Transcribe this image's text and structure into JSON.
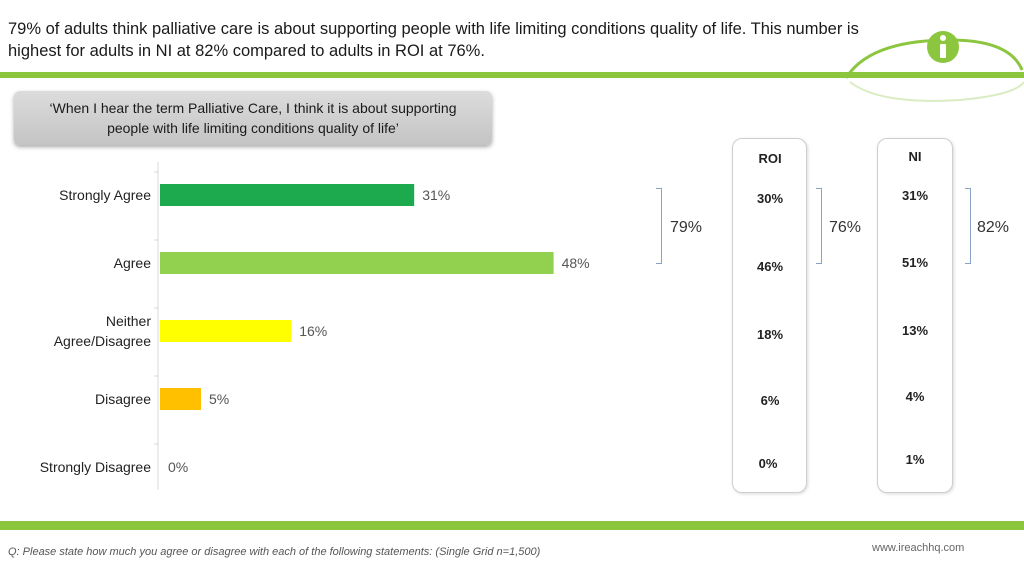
{
  "headline": "79% of adults think palliative care is about supporting people with life limiting conditions quality of life. This number is highest for adults in NI at 82% compared to adults in ROI at 76%.",
  "quote": "‘When I hear the term Palliative Care, I think it is about supporting people with life limiting conditions quality of life’",
  "chart_data": {
    "type": "bar",
    "orientation": "horizontal",
    "categories": [
      "Strongly Agree",
      "Agree",
      "Neither Agree/Disagree",
      "Disagree",
      "Strongly Disagree"
    ],
    "category_lines": [
      [
        "Strongly Agree"
      ],
      [
        "Agree"
      ],
      [
        "Neither",
        "Agree/Disagree"
      ],
      [
        "Disagree"
      ],
      [
        "Strongly Disagree"
      ]
    ],
    "values": [
      31,
      48,
      16,
      5,
      0
    ],
    "value_labels": [
      "31%",
      "48%",
      "16%",
      "5%",
      "0%"
    ],
    "bar_colors": [
      "#1daa4f",
      "#92d050",
      "#ffff00",
      "#ffc000",
      "#d9d9d9"
    ],
    "xlim": [
      0,
      60
    ],
    "grid": false
  },
  "breakdown": {
    "roi": {
      "header": "ROI",
      "values": [
        "30%",
        "46%",
        "18%",
        "6%",
        "0%"
      ],
      "agree_total": "76%"
    },
    "ni": {
      "header": "NI",
      "values": [
        "31%",
        "51%",
        "13%",
        "4%",
        "1%"
      ],
      "agree_total": "82%"
    },
    "overall_agree_total": "79%"
  },
  "footnote": "Q: Please state how much you agree or disagree with each of the following statements: (Single Grid n=1,500)",
  "website": "www.ireachhq.com",
  "logo": {
    "icon": "info-i-icon",
    "color": "#8cc63f"
  },
  "colors": {
    "accent_green": "#8cc63f",
    "bracket_blue": "#8aa2c8"
  }
}
